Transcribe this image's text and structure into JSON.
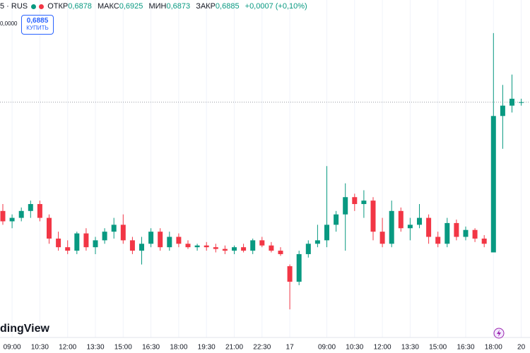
{
  "header": {
    "symbol": "5 · RUS",
    "open_label": "ОТКР",
    "open": "0,6878",
    "high_label": "МАКС",
    "high": "0,6925",
    "low_label": "МИН",
    "low": "0,6873",
    "close_label": "ЗАКР",
    "close": "0,6885",
    "change": "+0,0007 (+0,10%)",
    "axis_value": "0,0000",
    "buy_price": "0,6885",
    "buy_label": "КУПИТЬ",
    "watermark": "dingView"
  },
  "chart_data": {
    "type": "candlestick",
    "up_color": "#089981",
    "down_color": "#f23645",
    "grid": true,
    "ylim": [
      0.6752,
      0.6936
    ],
    "current_price": 0.6885,
    "categories": [
      null,
      "09:00",
      null,
      null,
      "10:30",
      null,
      null,
      "12:00",
      null,
      null,
      "13:30",
      null,
      null,
      "15:00",
      null,
      null,
      "16:30",
      null,
      null,
      "18:00",
      null,
      null,
      "19:30",
      null,
      null,
      "21:00",
      null,
      null,
      "22:30",
      null,
      null,
      "17",
      null,
      null,
      null,
      "09:00",
      null,
      null,
      "10:30",
      null,
      null,
      "12:00",
      null,
      null,
      "13:30",
      null,
      null,
      "15:00",
      null,
      null,
      "16:30",
      null,
      null,
      "18:00",
      null,
      null,
      "20"
    ],
    "open": [
      0.6822,
      0.6816,
      0.6818,
      0.6822,
      0.6826,
      0.6818,
      0.6806,
      0.6801,
      0.6799,
      0.6809,
      0.6801,
      0.6805,
      0.681,
      0.6814,
      0.6805,
      0.6799,
      0.6803,
      0.681,
      0.6801,
      0.6807,
      0.6803,
      0.6801,
      0.6802,
      0.6801,
      0.68,
      0.6799,
      0.6801,
      0.6799,
      0.6805,
      0.6802,
      0.6799,
      0.679,
      0.6781,
      0.6797,
      0.6803,
      0.6805,
      0.6814,
      0.682,
      0.683,
      0.6826,
      0.6828,
      0.681,
      0.6803,
      0.6822,
      0.6812,
      0.6814,
      0.6818,
      0.6807,
      0.6803,
      0.6815,
      0.6807,
      0.6811,
      0.6806,
      0.6798,
      0.6877,
      0.6883,
      0.6885
    ],
    "high": [
      0.6826,
      0.682,
      0.6824,
      0.6828,
      0.6828,
      0.682,
      0.681,
      0.6805,
      0.681,
      0.6812,
      0.6807,
      0.6812,
      0.6818,
      0.682,
      0.6807,
      0.6807,
      0.6812,
      0.6812,
      0.681,
      0.6809,
      0.6805,
      0.6803,
      0.6804,
      0.6803,
      0.6802,
      0.6802,
      0.6803,
      0.6806,
      0.6807,
      0.6804,
      0.6801,
      0.6791,
      0.6799,
      0.6805,
      0.6814,
      0.6848,
      0.6822,
      0.6838,
      0.6832,
      0.6834,
      0.683,
      0.6818,
      0.6828,
      0.6824,
      0.6818,
      0.6826,
      0.682,
      0.681,
      0.6818,
      0.6817,
      0.6813,
      0.6812,
      0.6808,
      0.6925,
      0.6895,
      0.6901,
      0.6887
    ],
    "low": [
      0.6814,
      0.6812,
      0.6816,
      0.6818,
      0.6816,
      0.6803,
      0.6799,
      0.6797,
      0.6797,
      0.6799,
      0.6797,
      0.6803,
      0.6806,
      0.6803,
      0.6797,
      0.6791,
      0.6801,
      0.6799,
      0.6799,
      0.6801,
      0.68,
      0.6799,
      0.6799,
      0.6798,
      0.6797,
      0.6797,
      0.6798,
      0.6797,
      0.6801,
      0.6798,
      0.6796,
      0.6765,
      0.6779,
      0.6795,
      0.6801,
      0.6801,
      0.681,
      0.6799,
      0.6822,
      0.6818,
      0.6805,
      0.6801,
      0.6801,
      0.681,
      0.6805,
      0.6812,
      0.6803,
      0.6801,
      0.6801,
      0.6805,
      0.6805,
      0.6804,
      0.6801,
      0.6798,
      0.6858,
      0.6879,
      0.6883
    ],
    "close": [
      0.6816,
      0.6818,
      0.6822,
      0.6826,
      0.6818,
      0.6806,
      0.6801,
      0.6799,
      0.6809,
      0.6801,
      0.6805,
      0.681,
      0.6814,
      0.6805,
      0.6799,
      0.6803,
      0.681,
      0.6801,
      0.6807,
      0.6803,
      0.6801,
      0.6802,
      0.6801,
      0.68,
      0.6799,
      0.6801,
      0.6799,
      0.6805,
      0.6802,
      0.6799,
      0.6797,
      0.6781,
      0.6797,
      0.6803,
      0.6805,
      0.6814,
      0.682,
      0.683,
      0.6826,
      0.6828,
      0.681,
      0.6803,
      0.6822,
      0.6812,
      0.6814,
      0.6818,
      0.6807,
      0.6803,
      0.6815,
      0.6807,
      0.6811,
      0.6806,
      0.6803,
      0.6877,
      0.6883,
      0.6887,
      0.6885
    ]
  }
}
